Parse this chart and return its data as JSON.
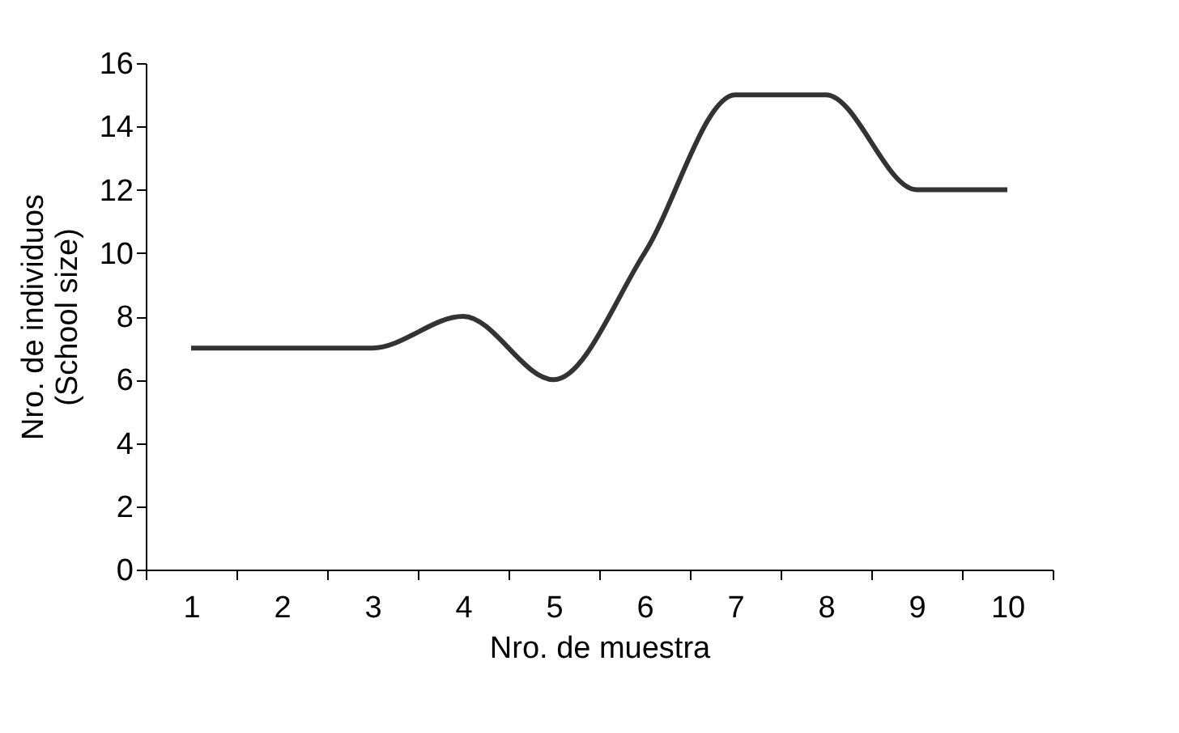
{
  "chart_data": {
    "type": "line",
    "xlabel": "Nro. de muestra",
    "ylabel": "Nro. de individuos\n(School size)",
    "categories": [
      "1",
      "2",
      "3",
      "4",
      "5",
      "6",
      "7",
      "8",
      "9",
      "10"
    ],
    "series": [
      {
        "color": "#333333",
        "values": [
          7,
          7,
          7,
          8,
          6,
          10,
          15,
          15,
          12,
          12
        ]
      }
    ],
    "ylim": [
      0,
      16
    ],
    "yticks": [
      0,
      2,
      4,
      6,
      8,
      10,
      12,
      14,
      16
    ],
    "grid": false,
    "marker": "none",
    "line_style": "solid"
  }
}
